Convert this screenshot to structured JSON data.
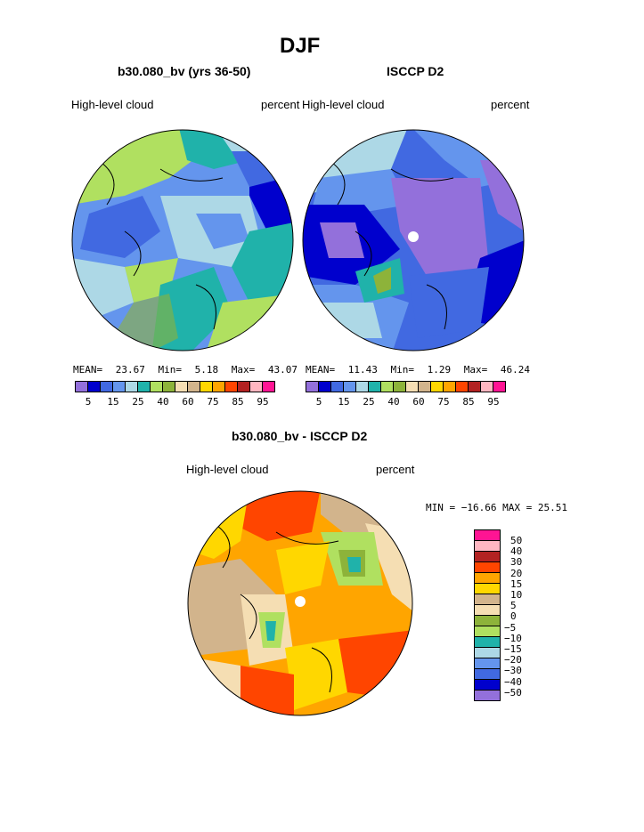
{
  "title": "DJF",
  "top_left": {
    "subtitle": "b30.080_bv (yrs 36-50)",
    "var_label": "High-level cloud",
    "units": "percent",
    "stats": {
      "mean_label": "MEAN=",
      "mean": "23.67",
      "min_label": "Min=",
      "min": "5.18",
      "max_label": "Max=",
      "max": "43.07"
    }
  },
  "top_right": {
    "subtitle": "ISCCP D2",
    "var_label": "High-level cloud",
    "units": "percent",
    "stats": {
      "mean_label": "MEAN=",
      "mean": "11.43",
      "min_label": "Min=",
      "min": "1.29",
      "max_label": "Max=",
      "max": "46.24"
    }
  },
  "bottom": {
    "subtitle": "b30.080_bv - ISCCP D2",
    "var_label": "High-level cloud",
    "units": "percent",
    "minmax": "MIN = −16.66 MAX =  25.51"
  },
  "colorbar_top": {
    "colors": [
      "#9370db",
      "#0000cd",
      "#4169e1",
      "#6495ed",
      "#add8e6",
      "#20b2aa",
      "#b0e060",
      "#8db33a",
      "#f5deb3",
      "#d2b48c",
      "#ffd700",
      "#ffa500",
      "#ff4500",
      "#b22222",
      "#ffb6c1",
      "#ff1493"
    ],
    "ticks": [
      "5",
      "15",
      "25",
      "40",
      "60",
      "75",
      "85",
      "95"
    ]
  },
  "colorbar_bottom": {
    "colors": [
      "#ff1493",
      "#ffb6c1",
      "#b22222",
      "#ff4500",
      "#ffa500",
      "#ffd700",
      "#d2b48c",
      "#f5deb3",
      "#8db33a",
      "#b0e060",
      "#20b2aa",
      "#add8e6",
      "#6495ed",
      "#4169e1",
      "#0000cd",
      "#9370db"
    ],
    "labels": [
      "50",
      "40",
      "30",
      "20",
      "15",
      "10",
      "5",
      "0",
      "−5",
      "−10",
      "−15",
      "−20",
      "−30",
      "−40",
      "−50"
    ]
  }
}
